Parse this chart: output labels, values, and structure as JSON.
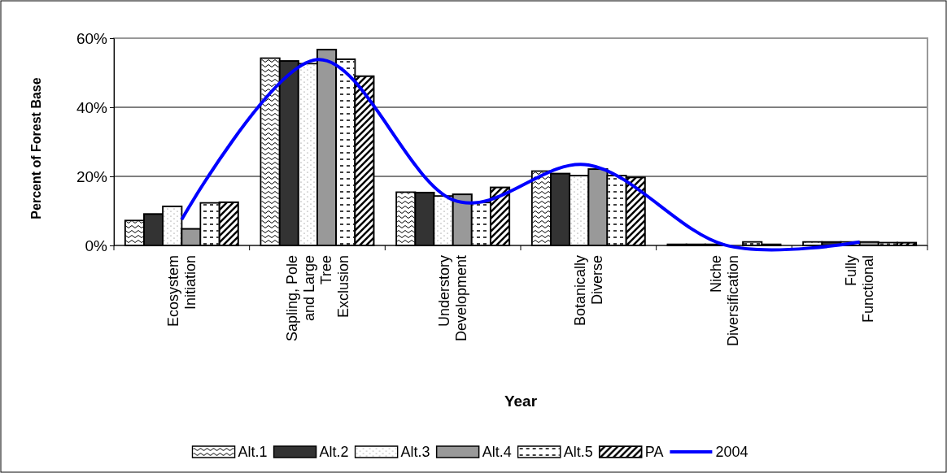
{
  "chart_data": {
    "type": "bar",
    "xlabel": "Year",
    "ylabel": "Percent of Forest Base",
    "categories": [
      "Ecosystem Initiation",
      "Sapling, Pole and Large Tree Exclusion",
      "Understory Development",
      "Botanically Diverse",
      "Niche Diversification",
      "Fully Functional"
    ],
    "series": [
      {
        "name": "Alt.1",
        "color": "#ffffff",
        "values": [
          7.2,
          54.2,
          15.4,
          21.5,
          0.3,
          1.0
        ]
      },
      {
        "name": "Alt.2",
        "color": "#333333",
        "values": [
          9.1,
          53.4,
          15.3,
          20.8,
          0.3,
          1.0
        ]
      },
      {
        "name": "Alt.3",
        "color": "#ffffff",
        "values": [
          11.3,
          52.6,
          14.3,
          20.2,
          0.3,
          1.0
        ]
      },
      {
        "name": "Alt.4",
        "color": "#999999",
        "values": [
          4.8,
          56.7,
          14.8,
          22.1,
          null,
          1.0
        ]
      },
      {
        "name": "Alt.5",
        "color": "#ffffff",
        "values": [
          12.3,
          53.9,
          12.4,
          20.2,
          1.0,
          0.8
        ]
      },
      {
        "name": "PA",
        "color": "#000000",
        "values": [
          12.5,
          49.0,
          16.8,
          19.7,
          0.3,
          0.8
        ]
      },
      {
        "name": "2004",
        "type": "line",
        "color": "#0000ff",
        "values": [
          7.5,
          53.8,
          13.2,
          23.3,
          0.2,
          1.0
        ]
      }
    ],
    "ylim": [
      0,
      60
    ],
    "yticks": [
      {
        "value": 0,
        "label": "0%"
      },
      {
        "value": 20,
        "label": "20%"
      },
      {
        "value": 40,
        "label": "40%"
      },
      {
        "value": 60,
        "label": "60%"
      }
    ],
    "grid": "y",
    "legend": "bottom",
    "marker": "none",
    "line_style": "solid"
  }
}
